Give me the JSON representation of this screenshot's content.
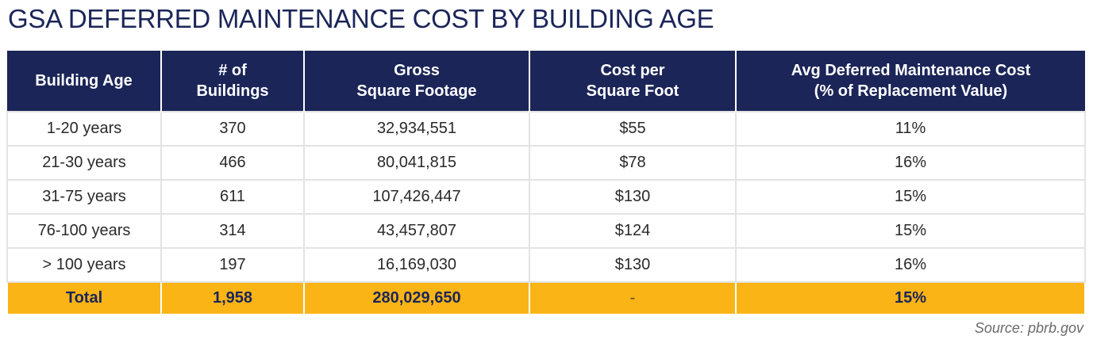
{
  "title": "GSA DEFERRED MAINTENANCE COST BY BUILDING AGE",
  "table": {
    "headers": [
      [
        "Building Age"
      ],
      [
        "# of",
        "Buildings"
      ],
      [
        "Gross",
        "Square Footage"
      ],
      [
        "Cost per",
        "Square Foot"
      ],
      [
        "Avg Deferred Maintenance Cost",
        "(% of Replacement Value)"
      ]
    ],
    "rows": [
      [
        "1-20 years",
        "370",
        "32,934,551",
        "$55",
        "11%"
      ],
      [
        "21-30 years",
        "466",
        "80,041,815",
        "$78",
        "16%"
      ],
      [
        "31-75 years",
        "611",
        "107,426,447",
        "$130",
        "15%"
      ],
      [
        "76-100 years",
        "314",
        "43,457,807",
        "$124",
        "15%"
      ],
      [
        "> 100 years",
        "197",
        "16,169,030",
        "$130",
        "16%"
      ]
    ],
    "total": [
      "Total",
      "1,958",
      "280,029,650",
      "-",
      "15%"
    ]
  },
  "source": "Source: pbrb.gov",
  "colors": {
    "header_bg": "#1b2558",
    "total_bg": "#fbb416",
    "title": "#1b2558"
  }
}
